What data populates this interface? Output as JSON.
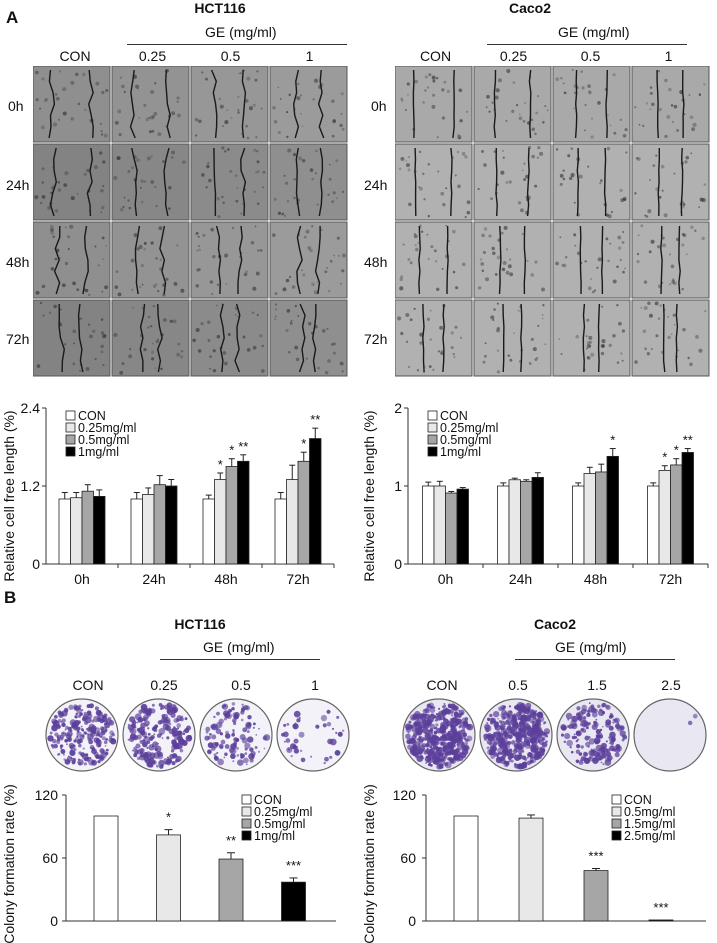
{
  "panels": {
    "a": "A",
    "b": "B"
  },
  "migration": {
    "left": {
      "cell_line": "HCT116",
      "ge_label": "GE (mg/ml)",
      "columns": [
        "CON",
        "0.25",
        "0.5",
        "1"
      ],
      "rows": [
        "0h",
        "24h",
        "48h",
        "72h"
      ],
      "image_tone": "#8f8f8f"
    },
    "right": {
      "cell_line": "Caco2",
      "ge_label": "GE (mg/ml)",
      "columns": [
        "CON",
        "0.25",
        "0.5",
        "1"
      ],
      "rows": [
        "0h",
        "24h",
        "48h",
        "72h"
      ],
      "image_tone": "#a3a3a3"
    }
  },
  "colony": {
    "left": {
      "cell_line": "HCT116",
      "ge_label": "GE (mg/ml)",
      "columns": [
        "CON",
        "0.25",
        "0.5",
        "1"
      ]
    },
    "right": {
      "cell_line": "Caco2",
      "ge_label": "GE (mg/ml)",
      "columns": [
        "CON",
        "0.5",
        "1.5",
        "2.5"
      ]
    }
  },
  "colors": {
    "fills": [
      "#ffffff",
      "#e8e8e8",
      "#a6a6a6",
      "#000000"
    ],
    "stain": "#5b3f9a"
  },
  "chart_data": [
    {
      "id": "hct116-wound",
      "type": "bar",
      "title": "",
      "ylabel": "Relative cell free length (%)",
      "xlabel": "",
      "categories": [
        "0h",
        "24h",
        "48h",
        "72h"
      ],
      "ylim": [
        0,
        2.4
      ],
      "yticks": [
        "0",
        "1.2",
        "2.4"
      ],
      "ytick_values": [
        0,
        1.2,
        2.4
      ],
      "legend_position": "top-left",
      "series": [
        {
          "name": "CON",
          "values": [
            1.0,
            1.0,
            1.0,
            1.0
          ],
          "errors": [
            0.1,
            0.1,
            0.06,
            0.1
          ]
        },
        {
          "name": "0.25mg/ml",
          "values": [
            1.02,
            1.07,
            1.3,
            1.3
          ],
          "errors": [
            0.08,
            0.1,
            0.1,
            0.22
          ]
        },
        {
          "name": "0.5mg/ml",
          "values": [
            1.12,
            1.22,
            1.5,
            1.58
          ],
          "errors": [
            0.1,
            0.14,
            0.12,
            0.14
          ]
        },
        {
          "name": "1mg/ml",
          "values": [
            1.04,
            1.2,
            1.58,
            1.93
          ],
          "errors": [
            0.1,
            0.1,
            0.1,
            0.16
          ]
        }
      ],
      "annotations": [
        {
          "category": 2,
          "series": 1,
          "text": "*"
        },
        {
          "category": 2,
          "series": 2,
          "text": "*"
        },
        {
          "category": 2,
          "series": 3,
          "text": "**"
        },
        {
          "category": 3,
          "series": 2,
          "text": "*"
        },
        {
          "category": 3,
          "series": 3,
          "text": "**"
        }
      ]
    },
    {
      "id": "caco2-wound",
      "type": "bar",
      "title": "",
      "ylabel": "Relative cell free length (%)",
      "xlabel": "",
      "categories": [
        "0h",
        "24h",
        "48h",
        "72h"
      ],
      "ylim": [
        0,
        2
      ],
      "yticks": [
        "0",
        "1",
        "2"
      ],
      "ytick_values": [
        0,
        1,
        2
      ],
      "legend_position": "top-left",
      "series": [
        {
          "name": "CON",
          "values": [
            1.0,
            1.0,
            1.0,
            1.0
          ],
          "errors": [
            0.05,
            0.04,
            0.04,
            0.04
          ]
        },
        {
          "name": "0.25mg/ml",
          "values": [
            1.0,
            1.08,
            1.16,
            1.2
          ],
          "errors": [
            0.06,
            0.02,
            0.08,
            0.06
          ]
        },
        {
          "name": "0.5mg/ml",
          "values": [
            0.91,
            1.06,
            1.18,
            1.27
          ],
          "errors": [
            0.02,
            0.02,
            0.1,
            0.08
          ]
        },
        {
          "name": "1mg/ml",
          "values": [
            0.96,
            1.11,
            1.38,
            1.43
          ],
          "errors": [
            0.02,
            0.06,
            0.1,
            0.05
          ]
        }
      ],
      "annotations": [
        {
          "category": 2,
          "series": 3,
          "text": "*"
        },
        {
          "category": 3,
          "series": 1,
          "text": "*"
        },
        {
          "category": 3,
          "series": 2,
          "text": "*"
        },
        {
          "category": 3,
          "series": 3,
          "text": "**"
        }
      ]
    },
    {
      "id": "hct116-colony",
      "type": "bar",
      "title": "",
      "ylabel": "Colony formation rate (%)",
      "xlabel": "",
      "categories": [
        "CON",
        "0.25mg/ml",
        "0.5mg/ml",
        "1mg/ml"
      ],
      "ylim": [
        0,
        120
      ],
      "yticks": [
        "0",
        "60",
        "120"
      ],
      "ytick_values": [
        0,
        60,
        120
      ],
      "legend_position": "top-right",
      "series": [
        {
          "name": "Colony formation rate",
          "values": [
            100,
            82,
            59,
            37
          ],
          "errors": [
            0,
            5,
            6,
            4
          ]
        }
      ],
      "legend": [
        "CON",
        "0.25mg/ml",
        "0.5mg/ml",
        "1mg/ml"
      ],
      "annotations": [
        {
          "category": 1,
          "series": 0,
          "text": "*"
        },
        {
          "category": 2,
          "series": 0,
          "text": "**"
        },
        {
          "category": 3,
          "series": 0,
          "text": "***"
        }
      ]
    },
    {
      "id": "caco2-colony",
      "type": "bar",
      "title": "",
      "ylabel": "Colony formation rate (%)",
      "xlabel": "",
      "categories": [
        "CON",
        "0.5mg/ml",
        "1.5mg/ml",
        "2.5mg/ml"
      ],
      "ylim": [
        0,
        120
      ],
      "yticks": [
        "0",
        "60",
        "120"
      ],
      "ytick_values": [
        0,
        60,
        120
      ],
      "legend_position": "top-right",
      "series": [
        {
          "name": "Colony formation rate",
          "values": [
            100,
            98,
            48,
            1
          ],
          "errors": [
            0,
            3,
            2,
            0
          ]
        }
      ],
      "legend": [
        "CON",
        "0.5mg/ml",
        "1.5mg/ml",
        "2.5mg/ml"
      ],
      "annotations": [
        {
          "category": 2,
          "series": 0,
          "text": "***"
        },
        {
          "category": 3,
          "series": 0,
          "text": "***"
        }
      ]
    }
  ]
}
